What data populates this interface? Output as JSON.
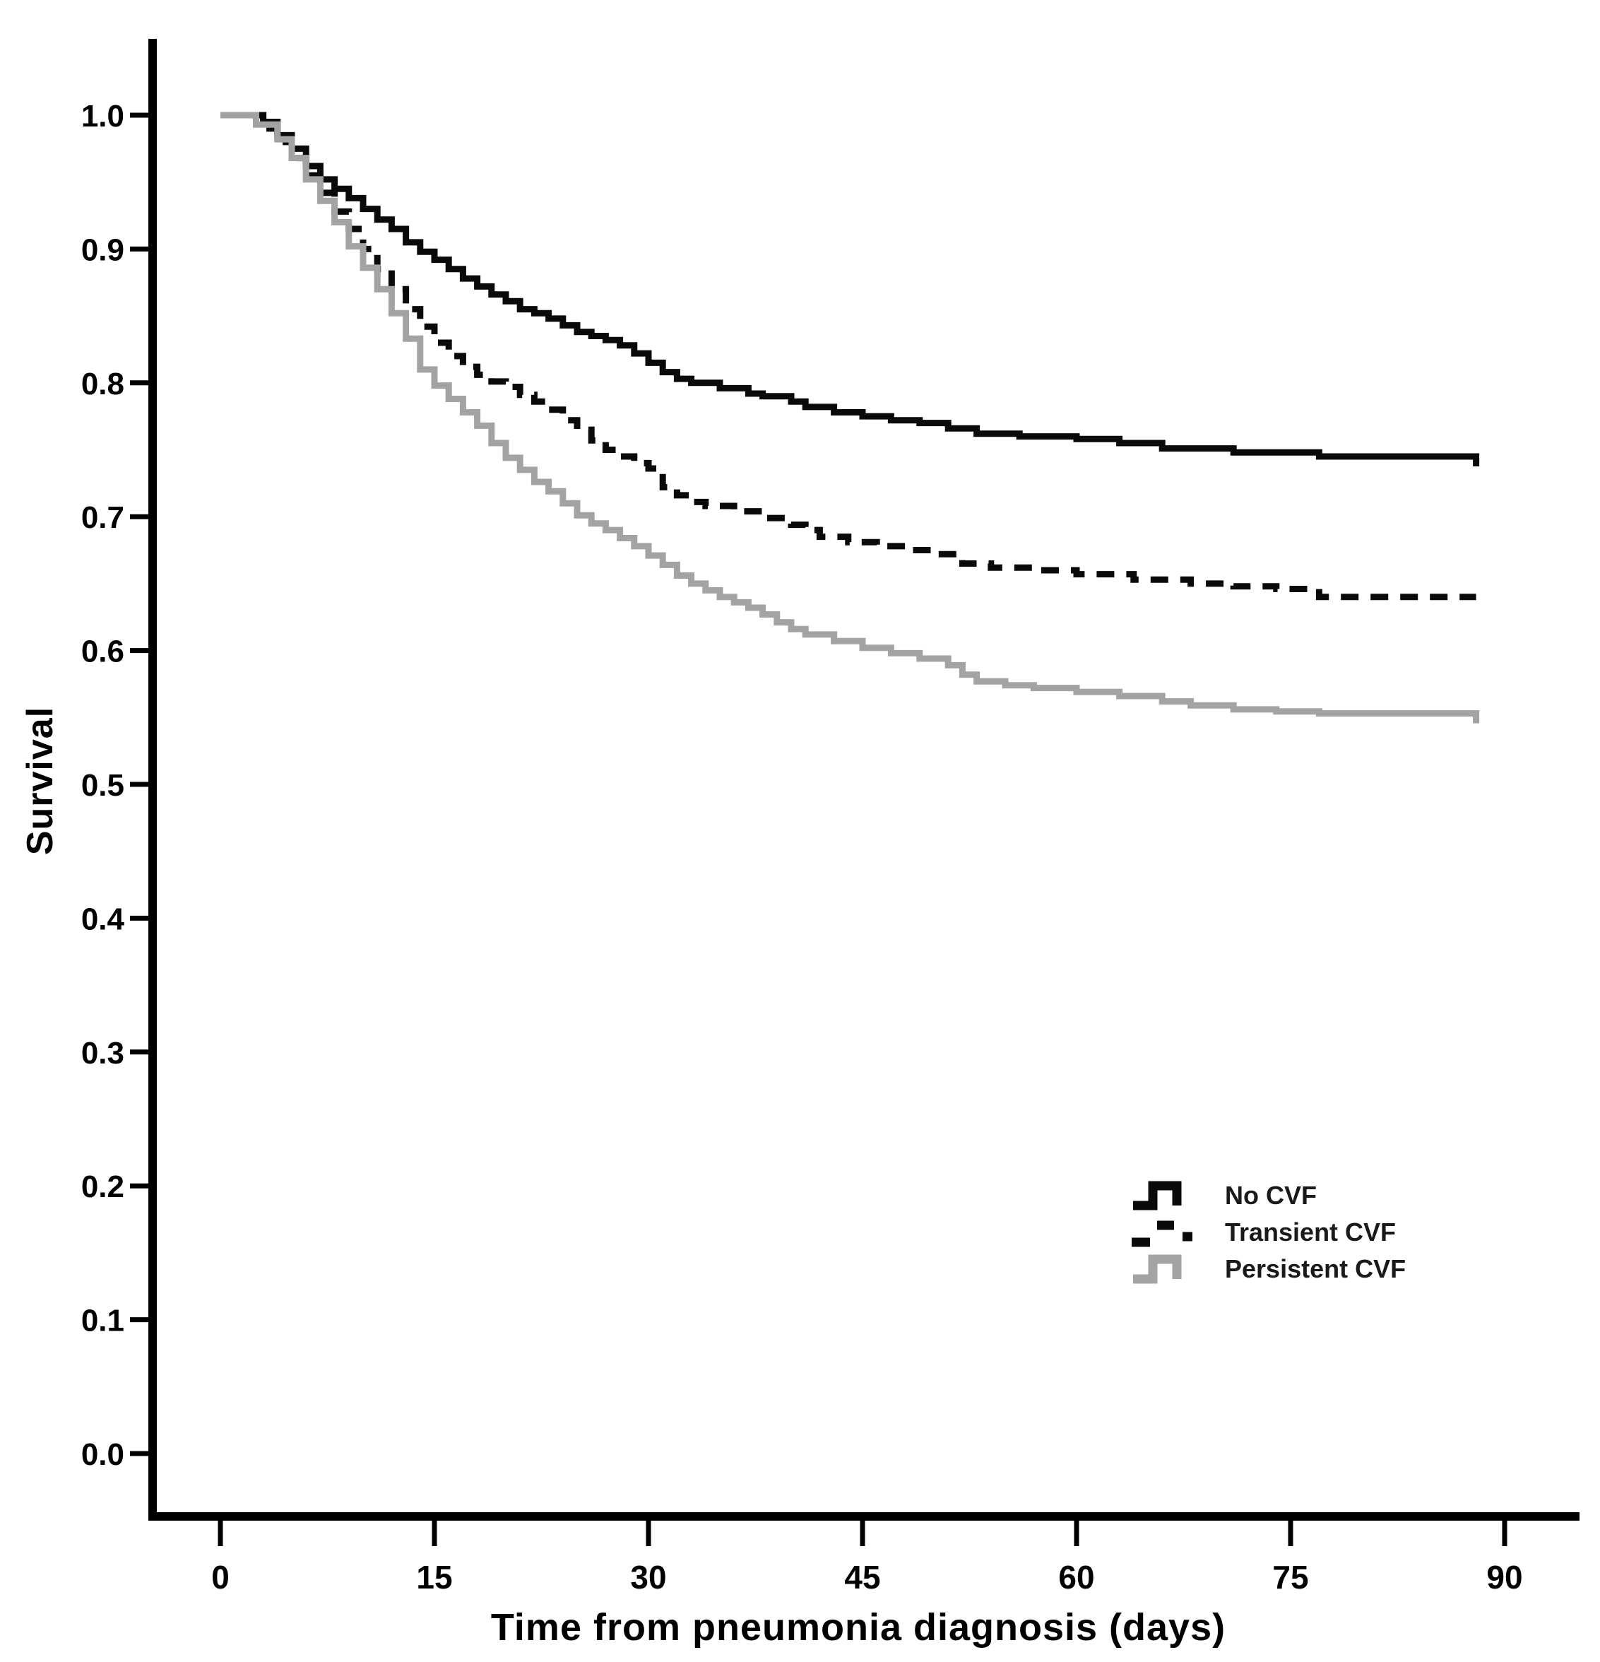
{
  "figure": {
    "background": "#ffffff",
    "axis_color": "#000000"
  },
  "chart_data": {
    "type": "line",
    "variant": "kaplan_meier_step",
    "title": "",
    "xlabel": "Time from pneumonia diagnosis (days)",
    "ylabel": "Survival",
    "xticks": [
      0,
      15,
      30,
      45,
      60,
      75,
      90
    ],
    "yticks": [
      0.0,
      0.1,
      0.2,
      0.3,
      0.4,
      0.5,
      0.6,
      0.7,
      0.8,
      0.9,
      1.0
    ],
    "xlim": [
      0,
      90
    ],
    "ylim": [
      0.0,
      1.0
    ],
    "grid": false,
    "legend_position": "inside-right-lower-middle",
    "series": [
      {
        "name": "No CVF",
        "color": "#0a0a0a",
        "style": "solid",
        "end_tick": true,
        "points": [
          [
            0,
            1.0
          ],
          [
            3,
            0.995
          ],
          [
            4,
            0.985
          ],
          [
            5,
            0.975
          ],
          [
            6,
            0.962
          ],
          [
            7,
            0.952
          ],
          [
            8,
            0.945
          ],
          [
            9,
            0.938
          ],
          [
            10,
            0.93
          ],
          [
            11,
            0.922
          ],
          [
            12,
            0.915
          ],
          [
            13,
            0.905
          ],
          [
            14,
            0.898
          ],
          [
            15,
            0.892
          ],
          [
            16,
            0.885
          ],
          [
            17,
            0.878
          ],
          [
            18,
            0.872
          ],
          [
            19,
            0.866
          ],
          [
            20,
            0.861
          ],
          [
            21,
            0.855
          ],
          [
            22,
            0.852
          ],
          [
            23,
            0.848
          ],
          [
            24,
            0.843
          ],
          [
            25,
            0.838
          ],
          [
            26,
            0.835
          ],
          [
            27,
            0.832
          ],
          [
            28,
            0.828
          ],
          [
            29,
            0.822
          ],
          [
            30,
            0.815
          ],
          [
            31,
            0.808
          ],
          [
            32,
            0.803
          ],
          [
            33,
            0.8
          ],
          [
            35,
            0.796
          ],
          [
            37,
            0.792
          ],
          [
            38,
            0.79
          ],
          [
            40,
            0.786
          ],
          [
            41,
            0.782
          ],
          [
            43,
            0.778
          ],
          [
            45,
            0.775
          ],
          [
            47,
            0.772
          ],
          [
            49,
            0.77
          ],
          [
            51,
            0.766
          ],
          [
            53,
            0.762
          ],
          [
            56,
            0.76
          ],
          [
            60,
            0.758
          ],
          [
            63,
            0.755
          ],
          [
            66,
            0.751
          ],
          [
            71,
            0.748
          ],
          [
            77,
            0.745
          ],
          [
            88,
            0.745
          ]
        ]
      },
      {
        "name": "Transient CVF",
        "color": "#0a0a0a",
        "style": "dashed",
        "end_tick": false,
        "points": [
          [
            0,
            1.0
          ],
          [
            3,
            0.99
          ],
          [
            4,
            0.98
          ],
          [
            5,
            0.968
          ],
          [
            6,
            0.955
          ],
          [
            7,
            0.942
          ],
          [
            8,
            0.928
          ],
          [
            9,
            0.915
          ],
          [
            10,
            0.9
          ],
          [
            11,
            0.885
          ],
          [
            12,
            0.87
          ],
          [
            13,
            0.855
          ],
          [
            14,
            0.842
          ],
          [
            15,
            0.83
          ],
          [
            16,
            0.82
          ],
          [
            17,
            0.812
          ],
          [
            18,
            0.806
          ],
          [
            19,
            0.801
          ],
          [
            20,
            0.797
          ],
          [
            21,
            0.791
          ],
          [
            22,
            0.786
          ],
          [
            23,
            0.78
          ],
          [
            24,
            0.772
          ],
          [
            25,
            0.765
          ],
          [
            26,
            0.757
          ],
          [
            27,
            0.75
          ],
          [
            28,
            0.745
          ],
          [
            29,
            0.74
          ],
          [
            30,
            0.736
          ],
          [
            31,
            0.722
          ],
          [
            32,
            0.716
          ],
          [
            33,
            0.711
          ],
          [
            34,
            0.708
          ],
          [
            36,
            0.704
          ],
          [
            38,
            0.699
          ],
          [
            40,
            0.694
          ],
          [
            41,
            0.69
          ],
          [
            42,
            0.685
          ],
          [
            44,
            0.681
          ],
          [
            46,
            0.678
          ],
          [
            48,
            0.675
          ],
          [
            50,
            0.672
          ],
          [
            52,
            0.665
          ],
          [
            54,
            0.662
          ],
          [
            57,
            0.66
          ],
          [
            60,
            0.657
          ],
          [
            64,
            0.653
          ],
          [
            68,
            0.65
          ],
          [
            71,
            0.648
          ],
          [
            74,
            0.646
          ],
          [
            77,
            0.64
          ],
          [
            88,
            0.64
          ]
        ]
      },
      {
        "name": "Persistent CVF",
        "color": "#a3a3a3",
        "style": "solid",
        "end_tick": true,
        "points": [
          [
            0,
            1.0
          ],
          [
            2.5,
            0.993
          ],
          [
            4,
            0.982
          ],
          [
            5,
            0.968
          ],
          [
            6,
            0.952
          ],
          [
            7,
            0.936
          ],
          [
            8,
            0.92
          ],
          [
            9,
            0.902
          ],
          [
            10,
            0.886
          ],
          [
            11,
            0.87
          ],
          [
            12,
            0.852
          ],
          [
            13,
            0.833
          ],
          [
            14,
            0.81
          ],
          [
            15,
            0.798
          ],
          [
            16,
            0.788
          ],
          [
            17,
            0.778
          ],
          [
            18,
            0.768
          ],
          [
            19,
            0.755
          ],
          [
            20,
            0.744
          ],
          [
            21,
            0.735
          ],
          [
            22,
            0.726
          ],
          [
            23,
            0.719
          ],
          [
            24,
            0.71
          ],
          [
            25,
            0.701
          ],
          [
            26,
            0.695
          ],
          [
            27,
            0.69
          ],
          [
            28,
            0.684
          ],
          [
            29,
            0.678
          ],
          [
            30,
            0.671
          ],
          [
            31,
            0.664
          ],
          [
            32,
            0.656
          ],
          [
            33,
            0.65
          ],
          [
            34,
            0.645
          ],
          [
            35,
            0.64
          ],
          [
            36,
            0.636
          ],
          [
            37,
            0.632
          ],
          [
            38,
            0.627
          ],
          [
            39,
            0.621
          ],
          [
            40,
            0.616
          ],
          [
            41,
            0.612
          ],
          [
            43,
            0.607
          ],
          [
            45,
            0.602
          ],
          [
            47,
            0.598
          ],
          [
            49,
            0.594
          ],
          [
            51,
            0.589
          ],
          [
            52,
            0.582
          ],
          [
            53,
            0.577
          ],
          [
            55,
            0.574
          ],
          [
            57,
            0.572
          ],
          [
            60,
            0.569
          ],
          [
            63,
            0.566
          ],
          [
            66,
            0.562
          ],
          [
            68,
            0.559
          ],
          [
            71,
            0.556
          ],
          [
            74,
            0.5545
          ],
          [
            77,
            0.553
          ],
          [
            88,
            0.553
          ]
        ]
      }
    ]
  }
}
